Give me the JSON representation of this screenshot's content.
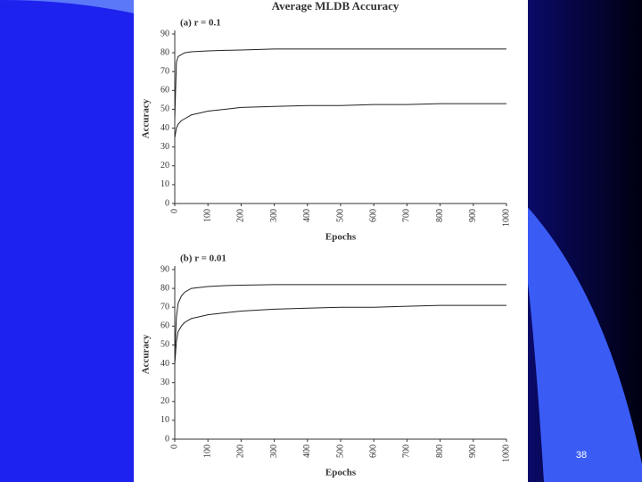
{
  "title": "Average MLDB Accuracy",
  "slide_number": "38",
  "chart_data": [
    {
      "type": "line",
      "subtitle": "(a) r = 0.1",
      "xlabel": "Epochs",
      "ylabel": "Accuracy",
      "x": [
        0,
        5,
        10,
        20,
        30,
        50,
        100,
        150,
        200,
        300,
        400,
        500,
        600,
        700,
        800,
        900,
        1000
      ],
      "series": [
        {
          "color": "#222222",
          "values": [
            45,
            75,
            78,
            79,
            80,
            80.5,
            81,
            81.3,
            81.5,
            82,
            82,
            82,
            82,
            82,
            82,
            82,
            82
          ]
        },
        {
          "color": "#222222",
          "values": [
            35,
            40,
            42,
            44,
            45,
            47,
            49,
            50,
            51,
            51.5,
            52,
            52,
            52.5,
            52.5,
            53,
            53,
            53
          ]
        }
      ],
      "xlim": [
        0,
        1000
      ],
      "xticks": [
        0,
        100,
        200,
        300,
        400,
        500,
        600,
        700,
        800,
        900,
        1000
      ],
      "ylim": [
        0,
        90
      ],
      "yticks": [
        0,
        10,
        20,
        30,
        40,
        50,
        60,
        70,
        80,
        90
      ]
    },
    {
      "type": "line",
      "subtitle": "(b) r = 0.01",
      "xlabel": "Epochs",
      "ylabel": "Accuracy",
      "x": [
        0,
        5,
        10,
        20,
        30,
        50,
        100,
        150,
        200,
        300,
        400,
        500,
        600,
        700,
        800,
        900,
        1000
      ],
      "series": [
        {
          "color": "#222222",
          "values": [
            45,
            65,
            72,
            76,
            78,
            80,
            81,
            81.5,
            81.7,
            82,
            82,
            82,
            82,
            82,
            82,
            82,
            82
          ]
        },
        {
          "color": "#222222",
          "values": [
            40,
            52,
            57,
            60,
            62,
            64,
            66,
            67,
            68,
            69,
            69.5,
            70,
            70,
            70.5,
            71,
            71,
            71
          ]
        }
      ],
      "xlim": [
        0,
        1000
      ],
      "xticks": [
        0,
        100,
        200,
        300,
        400,
        500,
        600,
        700,
        800,
        900,
        1000
      ],
      "ylim": [
        0,
        90
      ],
      "yticks": [
        0,
        10,
        20,
        30,
        40,
        50,
        60,
        70,
        80,
        90
      ]
    }
  ]
}
